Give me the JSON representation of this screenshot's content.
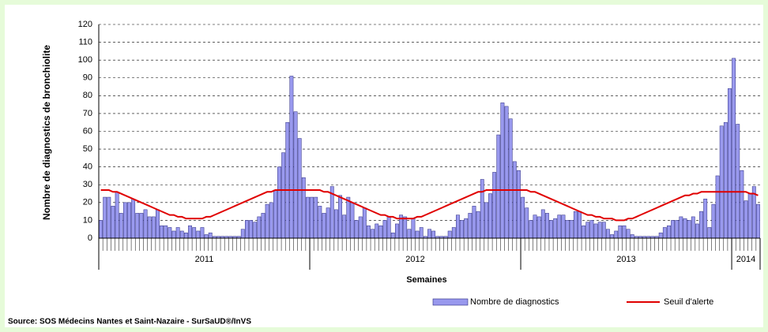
{
  "chart_data": {
    "type": "bar",
    "y_label": "Nombre de diagnostics de bronchiolite",
    "x_label": "Semaines",
    "source": "Source: SOS Médecins Nantes et Saint-Nazaire - SurSaUD®/InVS",
    "ylim": [
      0,
      120
    ],
    "yticks": [
      0,
      10,
      20,
      30,
      40,
      50,
      60,
      70,
      80,
      90,
      100,
      110,
      120
    ],
    "grid": true,
    "years": [
      {
        "label": "2011",
        "weeks": 52
      },
      {
        "label": "2012",
        "weeks": 52
      },
      {
        "label": "2013",
        "weeks": 52
      },
      {
        "label": "2014",
        "weeks": 7
      }
    ],
    "series": [
      {
        "name": "Nombre de diagnostics",
        "type": "bar",
        "color": "#9999ee",
        "values": [
          10,
          23,
          23,
          18,
          26,
          14,
          20,
          20,
          22,
          14,
          14,
          16,
          12,
          12,
          16,
          7,
          7,
          6,
          4,
          6,
          4,
          3,
          7,
          6,
          4,
          6,
          2,
          3,
          1,
          1,
          1,
          1,
          1,
          1,
          1,
          5,
          10,
          10,
          9,
          12,
          14,
          19,
          20,
          27,
          40,
          48,
          65,
          91,
          71,
          56,
          34,
          23,
          23,
          23,
          18,
          14,
          17,
          29,
          16,
          24,
          13,
          23,
          20,
          10,
          12,
          17,
          7,
          5,
          8,
          7,
          10,
          12,
          3,
          8,
          13,
          12,
          5,
          11,
          4,
          6,
          1,
          5,
          4,
          1,
          1,
          1,
          4,
          6,
          13,
          10,
          11,
          14,
          18,
          15,
          33,
          20,
          25,
          37,
          58,
          76,
          74,
          67,
          43,
          38,
          23,
          17,
          10,
          13,
          12,
          16,
          14,
          10,
          11,
          13,
          13,
          10,
          10,
          15,
          15,
          7,
          9,
          10,
          8,
          9,
          9,
          5,
          2,
          4,
          7,
          7,
          5,
          2,
          1,
          1,
          1,
          1,
          1,
          1,
          3,
          6,
          7,
          10,
          10,
          12,
          11,
          10,
          12,
          8,
          15,
          22,
          6,
          19,
          35,
          63,
          65,
          84,
          101,
          64,
          38,
          21,
          25,
          29,
          19
        ]
      },
      {
        "name": "Seuil d'alerte",
        "type": "line",
        "color": "#e00000",
        "values": [
          27,
          27,
          27,
          26,
          26,
          25,
          24,
          23,
          22,
          21,
          20,
          19,
          18,
          17,
          16,
          15,
          14,
          13,
          13,
          12,
          12,
          11,
          11,
          11,
          11,
          11,
          12,
          12,
          13,
          14,
          15,
          16,
          17,
          18,
          19,
          20,
          21,
          22,
          23,
          24,
          25,
          26,
          26,
          27,
          27,
          27,
          27,
          27,
          27,
          27,
          27,
          27,
          27,
          27,
          27,
          26,
          26,
          25,
          24,
          23,
          22,
          21,
          20,
          19,
          18,
          17,
          16,
          15,
          14,
          13,
          13,
          12,
          12,
          11,
          11,
          11,
          11,
          11,
          12,
          12,
          13,
          14,
          15,
          16,
          17,
          18,
          19,
          20,
          21,
          22,
          23,
          24,
          25,
          26,
          26,
          27,
          27,
          27,
          27,
          27,
          27,
          27,
          27,
          27,
          27,
          27,
          26,
          26,
          25,
          24,
          23,
          22,
          21,
          20,
          19,
          18,
          17,
          16,
          15,
          14,
          13,
          13,
          12,
          12,
          11,
          11,
          11,
          10,
          10,
          10,
          11,
          11,
          12,
          13,
          14,
          15,
          16,
          17,
          18,
          19,
          20,
          21,
          22,
          23,
          24,
          24,
          25,
          25,
          26,
          26,
          26,
          26,
          26,
          26,
          26,
          26,
          26,
          26,
          26,
          26,
          25,
          25,
          24
        ]
      }
    ]
  }
}
